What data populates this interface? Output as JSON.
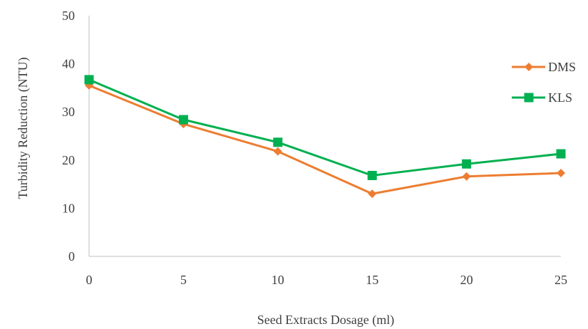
{
  "chart_data": {
    "type": "line",
    "xlabel": "Seed Extracts Dosage (ml)",
    "ylabel": "Turbidity Reduction (NTU)",
    "ylim": [
      0,
      50
    ],
    "yticks": [
      0,
      10,
      20,
      30,
      40,
      50
    ],
    "x": [
      0,
      5,
      10,
      15,
      20,
      25
    ],
    "x_tick_labels": [
      "0",
      "5",
      "10",
      "15",
      "20",
      "25"
    ],
    "grid": false,
    "legend_position": "right",
    "series": [
      {
        "name": "DMS",
        "color": "#ED7D31",
        "marker": "diamond",
        "values": [
          35.5,
          27.5,
          21.8,
          13.0,
          16.6,
          17.3
        ]
      },
      {
        "name": "KLS",
        "color": "#00B050",
        "marker": "square",
        "values": [
          36.7,
          28.4,
          23.7,
          16.8,
          19.2,
          21.3
        ]
      }
    ]
  }
}
